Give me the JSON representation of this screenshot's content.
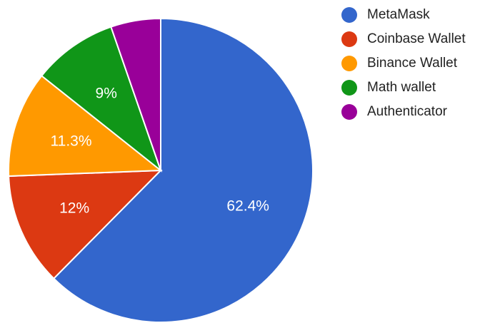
{
  "chart_data": {
    "type": "pie",
    "title": "",
    "legend_position": "right",
    "slices": [
      {
        "name": "MetaMask",
        "value": 62.4,
        "label": "62.4%",
        "color": "#3366cc"
      },
      {
        "name": "Coinbase Wallet",
        "value": 12.0,
        "label": "12%",
        "color": "#dc3912"
      },
      {
        "name": "Binance Wallet",
        "value": 11.3,
        "label": "11.3%",
        "color": "#ff9900"
      },
      {
        "name": "Math wallet",
        "value": 9.0,
        "label": "9%",
        "color": "#109618"
      },
      {
        "name": "Authenticator",
        "value": 5.3,
        "label": "",
        "color": "#990099"
      }
    ]
  }
}
